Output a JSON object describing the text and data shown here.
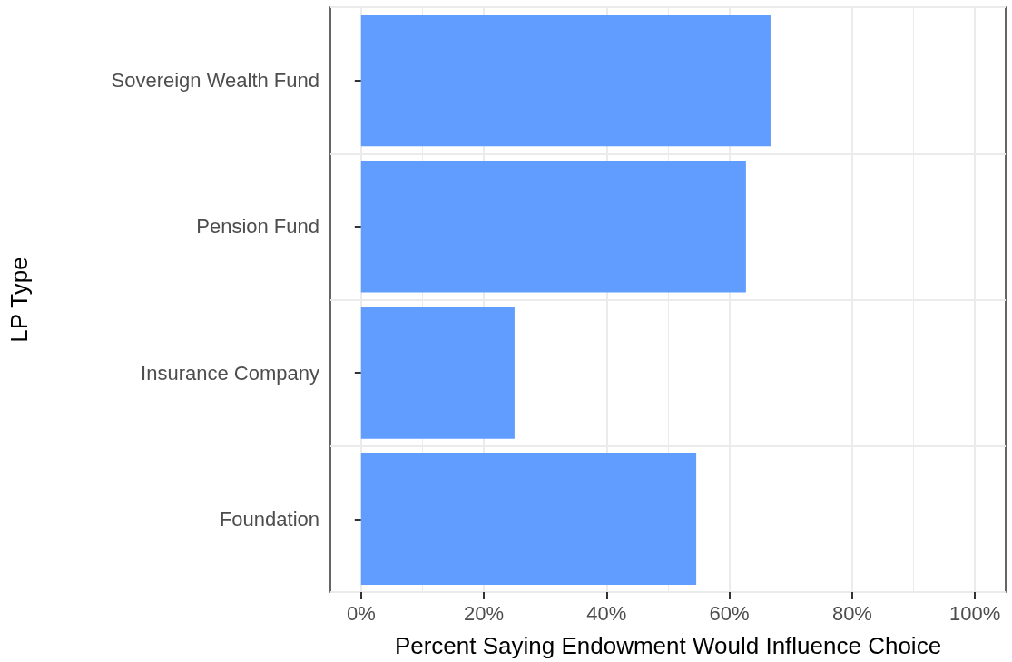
{
  "chart_data": {
    "type": "bar",
    "orientation": "horizontal",
    "xlabel": "Percent Saying Endowment Would Influence Choice",
    "ylabel": "LP Type",
    "categories": [
      "Sovereign Wealth Fund",
      "Pension Fund",
      "Insurance Company",
      "Foundation"
    ],
    "series": [
      {
        "color": "#619cff",
        "values": [
          66.7,
          62.7,
          25,
          54.6
        ]
      }
    ],
    "xlim": [
      -5,
      105
    ],
    "xticks": [
      {
        "value": 0,
        "label": "0%"
      },
      {
        "value": 20,
        "label": "20%"
      },
      {
        "value": 40,
        "label": "40%"
      },
      {
        "value": 60,
        "label": "60%"
      },
      {
        "value": 80,
        "label": "80%"
      },
      {
        "value": 100,
        "label": "100%"
      }
    ],
    "grid": true
  }
}
